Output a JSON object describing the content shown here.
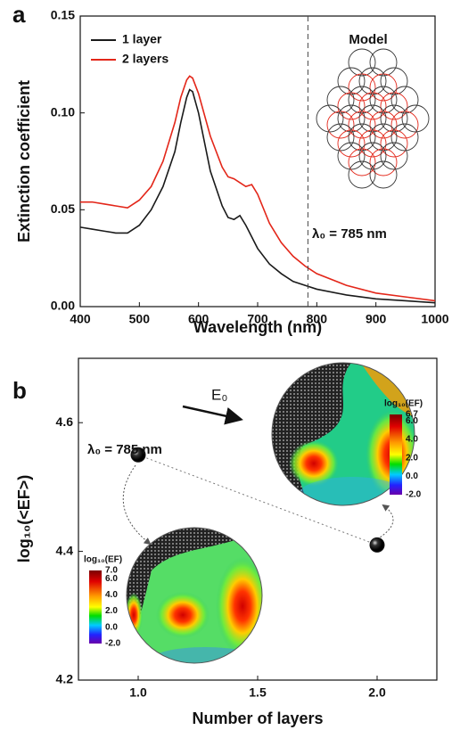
{
  "chart_data": [
    {
      "type": "line",
      "panel_label": "a",
      "x": [
        400,
        420,
        440,
        460,
        480,
        500,
        520,
        540,
        560,
        570,
        580,
        585,
        590,
        600,
        620,
        640,
        650,
        660,
        670,
        680,
        690,
        700,
        720,
        740,
        760,
        780,
        800,
        850,
        900,
        950,
        1000
      ],
      "series": [
        {
          "name": "1 layer",
          "color": "#1a1a1a",
          "values": [
            0.041,
            0.04,
            0.039,
            0.038,
            0.038,
            0.042,
            0.05,
            0.062,
            0.08,
            0.095,
            0.108,
            0.112,
            0.111,
            0.1,
            0.07,
            0.052,
            0.046,
            0.045,
            0.047,
            0.042,
            0.036,
            0.03,
            0.022,
            0.017,
            0.013,
            0.011,
            0.009,
            0.006,
            0.004,
            0.003,
            0.002
          ]
        },
        {
          "name": "2 layers",
          "color": "#e32619",
          "values": [
            0.054,
            0.054,
            0.053,
            0.052,
            0.051,
            0.055,
            0.062,
            0.075,
            0.095,
            0.108,
            0.117,
            0.119,
            0.118,
            0.11,
            0.088,
            0.072,
            0.067,
            0.066,
            0.064,
            0.062,
            0.063,
            0.058,
            0.043,
            0.033,
            0.026,
            0.021,
            0.017,
            0.011,
            0.007,
            0.005,
            0.003
          ]
        }
      ],
      "xlabel": "Wavelength (nm)",
      "ylabel": "Extinction coefficient",
      "xlim": [
        400,
        1000
      ],
      "ylim": [
        0,
        0.15
      ],
      "xticks": [
        400,
        500,
        600,
        700,
        800,
        900,
        1000
      ],
      "yticks": [
        {
          "value": 0,
          "label": "0.00"
        },
        {
          "value": 0.05,
          "label": "0.05"
        },
        {
          "value": 0.1,
          "label": "0.10"
        },
        {
          "value": 0.15,
          "label": "0.15"
        }
      ],
      "vline": 785,
      "annotations": [
        "Model",
        "λ₀ = 785 nm"
      ],
      "legend": "upper left"
    },
    {
      "type": "scatter",
      "panel_label": "b",
      "x": [
        1,
        2
      ],
      "values": [
        4.55,
        4.41
      ],
      "color": "#111111",
      "xlabel": "Number of layers",
      "ylabel": "log₁₀(<EF>)",
      "xlim": [
        0.75,
        2.25
      ],
      "ylim": [
        4.2,
        4.7
      ],
      "xticks": [
        {
          "value": 1,
          "label": "1.0"
        },
        {
          "value": 1.5,
          "label": "1.5"
        },
        {
          "value": 2,
          "label": "2.0"
        }
      ],
      "yticks": [
        4.2,
        4.4,
        4.6
      ],
      "annotations": [
        "λ₀ = 785 nm",
        "E₀"
      ],
      "colorbars": [
        {
          "title": "log₁₀(EF)",
          "ticks": [
            {
              "value": 6.7,
              "label": "6.7"
            },
            {
              "value": 6,
              "label": "6.0"
            },
            {
              "value": 4,
              "label": "4.0"
            },
            {
              "value": 2,
              "label": "2.0"
            },
            {
              "value": 0,
              "label": "0.0"
            },
            {
              "value": -2,
              "label": "-2.0"
            }
          ]
        },
        {
          "title": "log₁₀(EF)",
          "ticks": [
            {
              "value": 7,
              "label": "7.0"
            },
            {
              "value": 6,
              "label": "6.0"
            },
            {
              "value": 4,
              "label": "4.0"
            },
            {
              "value": 2,
              "label": "2.0"
            },
            {
              "value": 0,
              "label": "0.0"
            },
            {
              "value": -2,
              "label": "-2.0"
            }
          ]
        }
      ]
    }
  ]
}
